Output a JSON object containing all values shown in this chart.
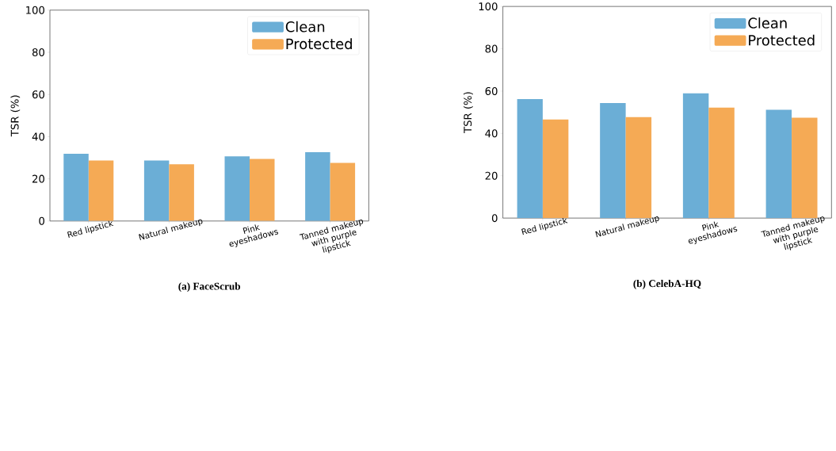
{
  "chart_data": [
    {
      "type": "bar",
      "title": "(a) FaceScrub",
      "ylabel": "TSR (%)",
      "categories": [
        "Red lipstick",
        "Natural makeup",
        "Pink eyeshadows",
        "Tanned makeup with purple lipstick"
      ],
      "series": [
        {
          "name": "Clean",
          "color": "#6baed6",
          "values": [
            31.9,
            28.7,
            30.7,
            32.6
          ]
        },
        {
          "name": "Protected",
          "color": "#f5aa55",
          "values": [
            28.7,
            26.9,
            29.4,
            27.6
          ]
        }
      ],
      "ylim": [
        0,
        100
      ],
      "yticks": [
        0,
        20,
        40,
        60,
        80,
        100
      ],
      "grid": false,
      "legend": "top right"
    },
    {
      "type": "bar",
      "title": "(b) CelebA-HQ",
      "ylabel": "TSR (%)",
      "categories": [
        "Red lipstick",
        "Natural makeup",
        "Pink eyeshadows",
        "Tanned makeup with purple lipstick"
      ],
      "series": [
        {
          "name": "Clean",
          "color": "#6baed6",
          "values": [
            56.2,
            54.4,
            59.0,
            51.2
          ]
        },
        {
          "name": "Protected",
          "color": "#f5aa55",
          "values": [
            46.6,
            47.7,
            52.3,
            47.4
          ]
        }
      ],
      "ylim": [
        0,
        100
      ],
      "yticks": [
        0,
        20,
        40,
        60,
        80,
        100
      ],
      "grid": false,
      "legend": "top right"
    }
  ]
}
